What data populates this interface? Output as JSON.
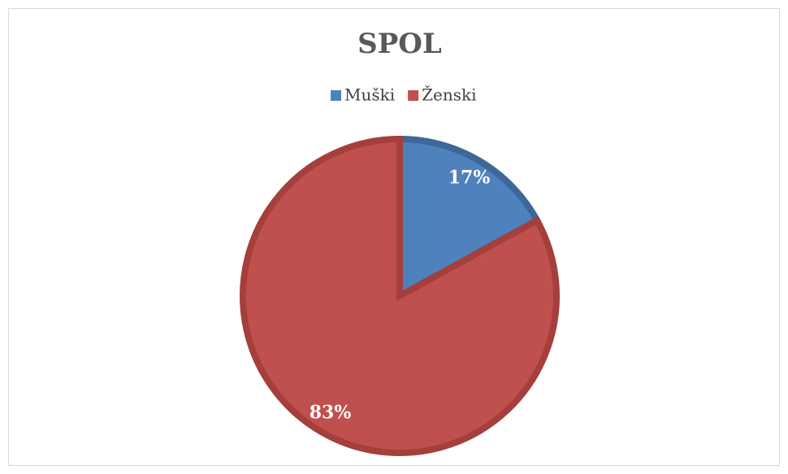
{
  "chart_data": {
    "type": "pie",
    "title": "SPOL",
    "categories": [
      "Muški",
      "Ženski"
    ],
    "values": [
      17,
      83
    ],
    "value_labels": [
      "17%",
      "83%"
    ],
    "colors": [
      "#4f81bd",
      "#c0504d"
    ],
    "border_colors": [
      "#3c6798",
      "#a43f3c"
    ],
    "legend": "top"
  }
}
